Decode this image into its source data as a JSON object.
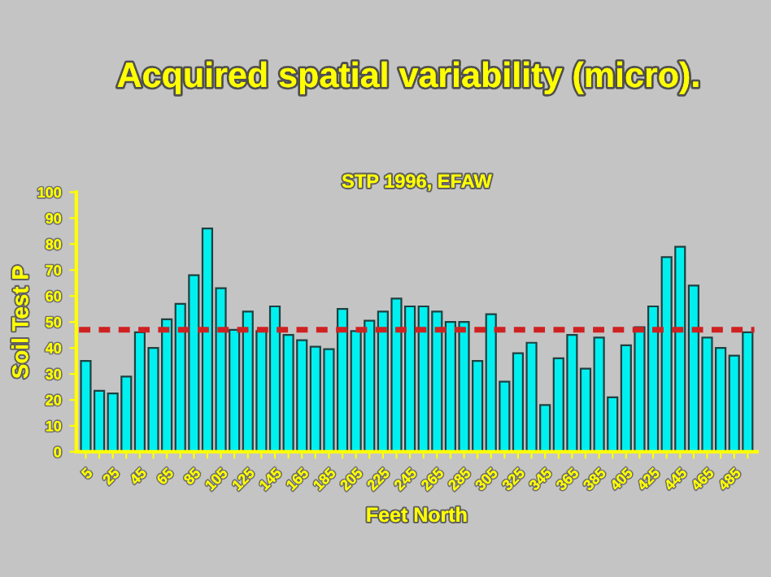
{
  "chart_data": {
    "type": "bar",
    "title": "Acquired spatial variability (micro).",
    "subtitle": "STP 1996, EFAW",
    "xlabel": "Feet North",
    "ylabel": "Soil Test P",
    "categories": [
      "5",
      null,
      "25",
      null,
      "45",
      null,
      "65",
      null,
      "85",
      null,
      "105",
      null,
      "125",
      null,
      "145",
      null,
      "165",
      null,
      "185",
      null,
      "205",
      null,
      "225",
      null,
      "245",
      null,
      "265",
      null,
      "285",
      null,
      "305",
      null,
      "325",
      null,
      "345",
      null,
      "365",
      null,
      "385",
      null,
      "405",
      null,
      "425",
      null,
      "445",
      null,
      "465",
      null,
      "485",
      null
    ],
    "values": [
      35,
      23.5,
      22.5,
      29,
      46,
      40,
      51,
      57,
      68,
      86,
      63,
      47,
      54,
      46.5,
      56,
      45,
      43,
      40.5,
      39.5,
      55,
      46.5,
      50.5,
      54,
      59,
      56,
      56,
      54,
      50,
      50,
      35,
      53,
      27,
      38,
      42,
      18,
      36,
      45,
      32,
      44,
      21,
      41,
      48,
      56,
      75,
      79,
      64,
      44,
      40,
      37,
      46
    ],
    "color": "#00f0f0",
    "ylim": [
      0,
      100
    ],
    "yticks": [
      0,
      10,
      20,
      30,
      40,
      50,
      60,
      70,
      80,
      90,
      100
    ],
    "grid": false,
    "legend": false,
    "ref_lines": [
      {
        "axis": "y",
        "value": 47,
        "color": "#d02020",
        "line_style": "dashed"
      }
    ]
  }
}
